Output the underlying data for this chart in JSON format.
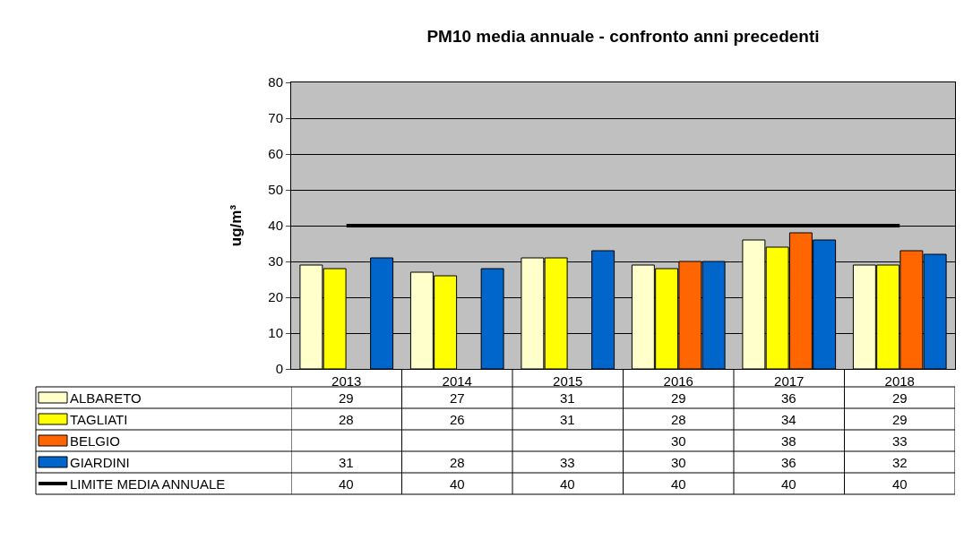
{
  "chart_data": {
    "type": "bar",
    "title": "PM10 media annuale - confronto anni precedenti",
    "ylabel": "ug/m³",
    "categories": [
      "2013",
      "2014",
      "2015",
      "2016",
      "2017",
      "2018"
    ],
    "series": [
      {
        "name": "ALBARETO",
        "color": "#ffffcc",
        "values": [
          29,
          27,
          31,
          29,
          36,
          29
        ]
      },
      {
        "name": "TAGLIATI",
        "color": "#ffff00",
        "values": [
          28,
          26,
          31,
          28,
          34,
          29
        ]
      },
      {
        "name": "BELGIO",
        "color": "#ff6600",
        "values": [
          null,
          null,
          null,
          30,
          38,
          33
        ]
      },
      {
        "name": "GIARDINI",
        "color": "#0066cc",
        "values": [
          31,
          28,
          33,
          30,
          36,
          32
        ]
      },
      {
        "name": "LIMITE MEDIA ANNUALE",
        "color": "#000000",
        "type": "line",
        "marker": "none",
        "values": [
          40,
          40,
          40,
          40,
          40,
          40
        ]
      }
    ],
    "ylim": [
      0,
      80
    ],
    "yticks": [
      0,
      10,
      20,
      30,
      40,
      50,
      60,
      70,
      80
    ],
    "grid": "y",
    "legend": "bottom",
    "data_labels": true
  }
}
